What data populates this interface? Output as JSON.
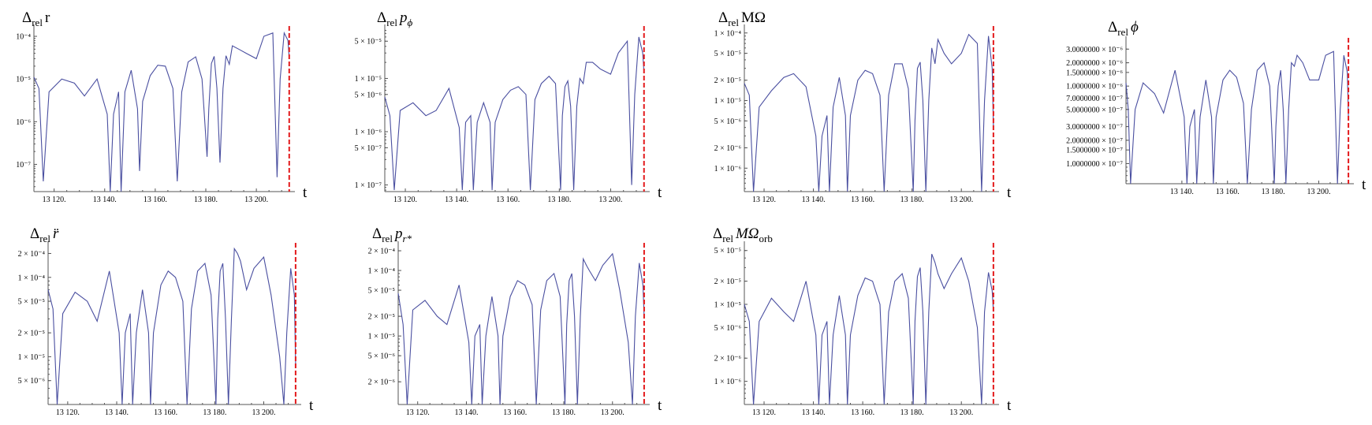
{
  "colors": {
    "series": "#4a4fa0",
    "marker": "#e31a1c",
    "axis": "#555555"
  },
  "marker_t": 13213,
  "chart_data": [
    {
      "type": "line",
      "scale": "log",
      "title_main": "Δ",
      "title_sub": "rel",
      "title_var": "r",
      "xlabel": "t",
      "xlim": [
        13112,
        13214
      ],
      "ylim": [
        2.3e-08,
        0.00016
      ],
      "xticks": [
        13120,
        13140,
        13160,
        13180,
        13200
      ],
      "xtick_labels": [
        "13 120.",
        "13 140.",
        "13 160.",
        "13 180.",
        "13 200."
      ],
      "yticks": [
        1e-07,
        1e-06,
        1e-05,
        0.0001
      ],
      "ytick_labels": [
        "10⁻⁷",
        "10⁻⁶",
        "10⁻⁵",
        "10⁻⁴"
      ],
      "series": [
        {
          "x": [
            13112,
            13114,
            13115.7,
            13118,
            13123,
            13128,
            13132,
            13137,
            13141,
            13142.2,
            13143.5,
            13145.5,
            13146.5,
            13148,
            13150.5,
            13153,
            13153.8,
            13155,
            13158,
            13161,
            13164,
            13167,
            13168.7,
            13170.5,
            13173,
            13176,
            13178.5,
            13180.5,
            13181.2,
            13182.2,
            13183.3,
            13184.4,
            13185.6,
            13186.8,
            13188,
            13189.3,
            13190.5,
            13193,
            13196,
            13200,
            13203,
            13206.5,
            13208.2,
            13209.4,
            13211,
            13212.5,
            13213
          ],
          "y": [
            1.1e-05,
            6e-06,
            4e-08,
            5e-06,
            1e-05,
            8e-06,
            4e-06,
            1e-05,
            1.5e-06,
            2.3e-08,
            1.5e-06,
            5e-06,
            2.3e-08,
            5e-06,
            1.6e-05,
            2e-06,
            7e-08,
            3e-06,
            1.2e-05,
            2.1e-05,
            2e-05,
            6e-06,
            4e-08,
            5e-06,
            2.5e-05,
            3.3e-05,
            1e-05,
            1.5e-07,
            2e-06,
            2.3e-05,
            3.4e-05,
            6e-06,
            1.1e-07,
            6e-06,
            3.5e-05,
            2.2e-05,
            6e-05,
            5e-05,
            4e-05,
            3e-05,
            0.0001,
            0.00012,
            5e-08,
            1e-05,
            0.00012,
            8e-05,
            3e-05
          ]
        }
      ]
    },
    {
      "type": "line",
      "scale": "log",
      "title_main": "Δ",
      "title_sub": "rel",
      "title_var": "p",
      "title_var_sub": "ϕ",
      "xlabel": "t",
      "xlim": [
        13112,
        13214
      ],
      "ylim": [
        7.5e-08,
        9e-05
      ],
      "xticks": [
        13120,
        13140,
        13160,
        13180,
        13200
      ],
      "xtick_labels": [
        "13 120.",
        "13 140.",
        "13 160.",
        "13 180.",
        "13 200."
      ],
      "yticks": [
        1e-07,
        5e-07,
        1e-06,
        5e-06,
        1e-05,
        5e-05
      ],
      "ytick_labels": [
        "1 × 10⁻⁷",
        "5 × 10⁻⁷",
        "1 × 10⁻⁶",
        "5 × 10⁻⁶",
        "1 × 10⁻⁵",
        "5 × 10⁻⁵"
      ],
      "series": [
        {
          "x": [
            13112,
            13114,
            13115.7,
            13118,
            13123,
            13128,
            13132,
            13137,
            13141,
            13142.2,
            13143.5,
            13145.5,
            13146.5,
            13148,
            13150.5,
            13153,
            13153.8,
            13155,
            13158,
            13161,
            13164,
            13167,
            13168.7,
            13170.5,
            13173,
            13176,
            13178.5,
            13180.5,
            13181.2,
            13182.2,
            13183.3,
            13184.4,
            13185.6,
            13186.8,
            13188,
            13189.3,
            13190.5,
            13193,
            13196,
            13200,
            13203,
            13206.5,
            13208.2,
            13209.4,
            13211,
            13212.5,
            13213
          ],
          "y": [
            4.5e-06,
            2e-06,
            8e-08,
            2.5e-06,
            3.5e-06,
            2e-06,
            2.5e-06,
            6.5e-06,
            1.2e-06,
            8e-08,
            1.5e-06,
            2e-06,
            8e-08,
            1.5e-06,
            3.5e-06,
            1.5e-06,
            8e-08,
            1.5e-06,
            4e-06,
            6e-06,
            7e-06,
            5e-06,
            8e-08,
            4e-06,
            8e-06,
            1.1e-05,
            8e-06,
            8e-08,
            2e-06,
            7e-06,
            9e-06,
            3e-06,
            8e-08,
            3e-06,
            1e-05,
            8e-06,
            2e-05,
            2e-05,
            1.5e-05,
            1.2e-05,
            3e-05,
            5e-05,
            1e-07,
            5e-06,
            6e-05,
            3e-05,
            1.3e-05
          ]
        }
      ]
    },
    {
      "type": "line",
      "scale": "log",
      "title_main": "Δ",
      "title_sub": "rel",
      "title_var": "MΩ",
      "xlabel": "t",
      "xlim": [
        13112,
        13214
      ],
      "ylim": [
        4.5e-07,
        0.00012
      ],
      "xticks": [
        13120,
        13140,
        13160,
        13180,
        13200
      ],
      "xtick_labels": [
        "13 120.",
        "13 140.",
        "13 160.",
        "13 180.",
        "13 200."
      ],
      "yticks": [
        1e-06,
        2e-06,
        5e-06,
        1e-05,
        2e-05,
        5e-05,
        0.0001
      ],
      "ytick_labels": [
        "1 × 10⁻⁶",
        "2 × 10⁻⁶",
        "5 × 10⁻⁶",
        "1 × 10⁻⁵",
        "2 × 10⁻⁵",
        "5 × 10⁻⁵",
        "1 × 10⁻⁴"
      ],
      "series": [
        {
          "x": [
            13112,
            13114,
            13115.7,
            13118,
            13123,
            13128,
            13132,
            13137,
            13141,
            13142.2,
            13143.5,
            13145.5,
            13146.5,
            13148,
            13150.5,
            13153,
            13153.8,
            13155,
            13158,
            13161,
            13164,
            13167,
            13168.7,
            13170.5,
            13173,
            13176,
            13178.5,
            13180.5,
            13181.2,
            13182.2,
            13183.3,
            13184.4,
            13185.6,
            13186.8,
            13188,
            13189.3,
            13190.5,
            13193,
            13196,
            13200,
            13203,
            13206.5,
            13208.2,
            13209.4,
            13211,
            13212.5,
            13213
          ],
          "y": [
            1.8e-05,
            1.2e-05,
            4.5e-07,
            8e-06,
            1.4e-05,
            2.2e-05,
            2.5e-05,
            1.6e-05,
            3e-06,
            4.5e-07,
            3e-06,
            6e-06,
            4.5e-07,
            8e-06,
            2.2e-05,
            6e-06,
            4.5e-07,
            6e-06,
            2e-05,
            2.8e-05,
            2.5e-05,
            1.2e-05,
            4.5e-07,
            1.2e-05,
            3.5e-05,
            3.5e-05,
            1.5e-05,
            4.5e-07,
            5e-06,
            3e-05,
            3.7e-05,
            1e-05,
            4.5e-07,
            1e-05,
            6e-05,
            3.5e-05,
            8e-05,
            5e-05,
            3.5e-05,
            5e-05,
            9.5e-05,
            7e-05,
            4.5e-07,
            1e-05,
            9e-05,
            3e-05,
            4e-06
          ]
        }
      ]
    },
    {
      "type": "line",
      "scale": "log",
      "title_main": "Δ",
      "title_sub": "rel",
      "title_var": "ϕ",
      "xlabel": "t",
      "xlim": [
        13115.5,
        13214
      ],
      "ylim": [
        5.5e-08,
        4e-06
      ],
      "xticks": [
        13140,
        13160,
        13180,
        13200
      ],
      "xtick_labels": [
        "13 140.",
        "13 160.",
        "13 180.",
        "13 200."
      ],
      "yticks": [
        1e-07,
        1.5e-07,
        2e-07,
        3e-07,
        5e-07,
        7e-07,
        1e-06,
        1.5e-06,
        2e-06,
        3e-06
      ],
      "ytick_labels": [
        "1.0000000 × 10⁻⁷",
        "1.5000000 × 10⁻⁷",
        "2.0000000 × 10⁻⁷",
        "3.0000000 × 10⁻⁷",
        "5.0000000 × 10⁻⁷",
        "7.0000000 × 10⁻⁷",
        "1.0000000 × 10⁻⁶",
        "1.5000000 × 10⁻⁶",
        "2.0000000 × 10⁻⁶",
        "3.0000000 × 10⁻⁶"
      ],
      "series": [
        {
          "x": [
            13115.5,
            13116.5,
            13117.5,
            13119.5,
            13123,
            13128,
            13132,
            13137,
            13141,
            13142.2,
            13143.5,
            13145.5,
            13146.5,
            13148,
            13150.5,
            13153,
            13153.8,
            13155,
            13158,
            13161,
            13164,
            13167,
            13168.7,
            13170.5,
            13173,
            13176,
            13178.5,
            13180.5,
            13181.2,
            13182.2,
            13183.3,
            13184.4,
            13185.6,
            13186.8,
            13188,
            13189.3,
            13190.5,
            13193,
            13196,
            13200,
            13203,
            13206.5,
            13208.2,
            13209.4,
            13211,
            13212.5,
            13213
          ],
          "y": [
            1.1e-06,
            5e-07,
            5.5e-08,
            5e-07,
            1.1e-06,
            8e-07,
            4.5e-07,
            1.6e-06,
            4e-07,
            5.5e-08,
            3e-07,
            5e-07,
            5.5e-08,
            4e-07,
            1.2e-06,
            4e-07,
            5.5e-08,
            4e-07,
            1.2e-06,
            1.6e-06,
            1.3e-06,
            6e-07,
            5.5e-08,
            5e-07,
            1.6e-06,
            2e-06,
            1e-06,
            5.5e-08,
            3e-07,
            1e-06,
            1.6e-06,
            5e-07,
            5.5e-08,
            5e-07,
            2e-06,
            1.8e-06,
            2.5e-06,
            2e-06,
            1.2e-06,
            1.2e-06,
            2.5e-06,
            2.8e-06,
            5.5e-08,
            5e-07,
            2.5e-06,
            1.5e-06,
            4e-07
          ]
        }
      ]
    },
    {
      "type": "line",
      "scale": "log",
      "title_main": "Δ",
      "title_sub": "rel",
      "title_var": "r̈",
      "xlabel": "t",
      "xlim": [
        13112,
        13214
      ],
      "ylim": [
        2.5e-06,
        0.00026
      ],
      "xticks": [
        13120,
        13140,
        13160,
        13180,
        13200
      ],
      "xtick_labels": [
        "13 120.",
        "13 140.",
        "13 160.",
        "13 180.",
        "13 200."
      ],
      "yticks": [
        5e-06,
        1e-05,
        2e-05,
        5e-05,
        0.0001,
        0.0002
      ],
      "ytick_labels": [
        "5 × 10⁻⁶",
        "1 × 10⁻⁵",
        "2 × 10⁻⁵",
        "5 × 10⁻⁵",
        "1 × 10⁻⁴",
        "2 × 10⁻⁴"
      ],
      "series": [
        {
          "x": [
            13112,
            13114,
            13115.7,
            13118,
            13123,
            13128,
            13132,
            13137,
            13141,
            13142.2,
            13143.5,
            13145.5,
            13146.5,
            13148,
            13150.5,
            13153,
            13153.8,
            13155,
            13158,
            13161,
            13164,
            13167,
            13168.7,
            13170.5,
            13173,
            13176,
            13178.5,
            13180.5,
            13181.2,
            13182.2,
            13183.3,
            13184.4,
            13185.6,
            13186.8,
            13188,
            13189.3,
            13190.5,
            13193,
            13196,
            13200,
            13203,
            13206.5,
            13208.2,
            13209.4,
            13211,
            13212.5,
            13213
          ],
          "y": [
            7e-05,
            4e-05,
            2.5e-06,
            3.5e-05,
            6.5e-05,
            5e-05,
            2.8e-05,
            0.00012,
            2e-05,
            2.5e-06,
            2e-05,
            3.5e-05,
            2.5e-06,
            2e-05,
            7e-05,
            2e-05,
            2.5e-06,
            2e-05,
            8e-05,
            0.00012,
            0.0001,
            5e-05,
            2.5e-06,
            4e-05,
            0.00012,
            0.00015,
            6e-05,
            2.5e-06,
            3e-05,
            0.00012,
            0.00015,
            3e-05,
            2.5e-06,
            3e-05,
            0.00023,
            0.0002,
            0.00016,
            7e-05,
            0.00013,
            0.00018,
            6e-05,
            1e-05,
            2.5e-06,
            2e-05,
            0.00013,
            6e-05,
            8e-06
          ]
        }
      ]
    },
    {
      "type": "line",
      "scale": "log",
      "title_main": "Δ",
      "title_sub": "rel",
      "title_var": "p",
      "title_var_sub": "r*",
      "xlabel": "t",
      "xlim": [
        13112,
        13214
      ],
      "ylim": [
        9e-07,
        0.00025
      ],
      "xticks": [
        13120,
        13140,
        13160,
        13180,
        13200
      ],
      "xtick_labels": [
        "13 120.",
        "13 140.",
        "13 160.",
        "13 180.",
        "13 200."
      ],
      "yticks": [
        2e-06,
        5e-06,
        1e-05,
        2e-05,
        5e-05,
        0.0001,
        0.0002
      ],
      "ytick_labels": [
        "2 × 10⁻⁶",
        "5 × 10⁻⁶",
        "1 × 10⁻⁵",
        "2 × 10⁻⁵",
        "5 × 10⁻⁵",
        "1 × 10⁻⁴",
        "2 × 10⁻⁴"
      ],
      "series": [
        {
          "x": [
            13112,
            13114,
            13115.7,
            13118,
            13123,
            13128,
            13132,
            13137,
            13141,
            13142.2,
            13143.5,
            13145.5,
            13146.5,
            13148,
            13150.5,
            13153,
            13153.8,
            13155,
            13158,
            13161,
            13164,
            13167,
            13168.7,
            13170.5,
            13173,
            13176,
            13178.5,
            13180.5,
            13181.2,
            13182.2,
            13183.3,
            13184.4,
            13185.6,
            13186.8,
            13188,
            13189.3,
            13190.5,
            13193,
            13196,
            13200,
            13203,
            13206.5,
            13208.2,
            13209.4,
            13211,
            13212.5,
            13213
          ],
          "y": [
            4.5e-05,
            1.5e-05,
            9e-07,
            2.5e-05,
            3.5e-05,
            2e-05,
            1.5e-05,
            6e-05,
            8e-06,
            9e-07,
            1e-05,
            1.5e-05,
            9e-07,
            1e-05,
            4e-05,
            1e-05,
            9e-07,
            1e-05,
            4e-05,
            7e-05,
            6e-05,
            3e-05,
            9e-07,
            2.5e-05,
            7e-05,
            9e-05,
            4e-05,
            9e-07,
            1.5e-05,
            7e-05,
            9e-05,
            2e-05,
            9e-07,
            2e-05,
            0.00015,
            0.00012,
            0.0001,
            7e-05,
            0.00012,
            0.00018,
            5e-05,
            8e-06,
            9e-07,
            2e-05,
            0.00013,
            6e-05,
            2e-05
          ]
        }
      ]
    },
    {
      "type": "line",
      "scale": "log",
      "title_main": "Δ",
      "title_sub": "rel",
      "title_var": "MΩ",
      "title_var_sub": "orb",
      "xlabel": "t",
      "xlim": [
        13112,
        13214
      ],
      "ylim": [
        5e-07,
        6e-05
      ],
      "xticks": [
        13120,
        13140,
        13160,
        13180,
        13200
      ],
      "xtick_labels": [
        "13 120.",
        "13 140.",
        "13 160.",
        "13 180.",
        "13 200."
      ],
      "yticks": [
        1e-06,
        2e-06,
        5e-06,
        1e-05,
        2e-05,
        5e-05
      ],
      "ytick_labels": [
        "1 × 10⁻⁶",
        "2 × 10⁻⁶",
        "5 × 10⁻⁶",
        "1 × 10⁻⁵",
        "2 × 10⁻⁵",
        "5 × 10⁻⁵"
      ],
      "series": [
        {
          "x": [
            13112,
            13114,
            13115.7,
            13118,
            13123,
            13128,
            13132,
            13137,
            13141,
            13142.2,
            13143.5,
            13145.5,
            13146.5,
            13148,
            13150.5,
            13153,
            13153.8,
            13155,
            13158,
            13161,
            13164,
            13167,
            13168.7,
            13170.5,
            13173,
            13176,
            13178.5,
            13180.5,
            13181.2,
            13182.2,
            13183.3,
            13184.4,
            13185.6,
            13186.8,
            13188,
            13189.3,
            13190.5,
            13193,
            13196,
            13200,
            13203,
            13206.5,
            13208.2,
            13209.4,
            13211,
            13212.5,
            13213
          ],
          "y": [
            1e-05,
            6e-06,
            5e-07,
            6e-06,
            1.2e-05,
            8e-06,
            6e-06,
            2e-05,
            4e-06,
            5e-07,
            4e-06,
            6e-06,
            5e-07,
            4e-06,
            1.3e-05,
            4e-06,
            5e-07,
            4e-06,
            1.3e-05,
            2.2e-05,
            2e-05,
            1e-05,
            5e-07,
            8e-06,
            2e-05,
            2.5e-05,
            1.2e-05,
            5e-07,
            6e-06,
            2.3e-05,
            3e-05,
            8e-06,
            5e-07,
            8e-06,
            4.5e-05,
            3.5e-05,
            2.5e-05,
            1.6e-05,
            2.5e-05,
            4e-05,
            2e-05,
            5e-06,
            5e-07,
            8e-06,
            2.6e-05,
            1.5e-05,
            8e-06
          ]
        }
      ]
    }
  ]
}
